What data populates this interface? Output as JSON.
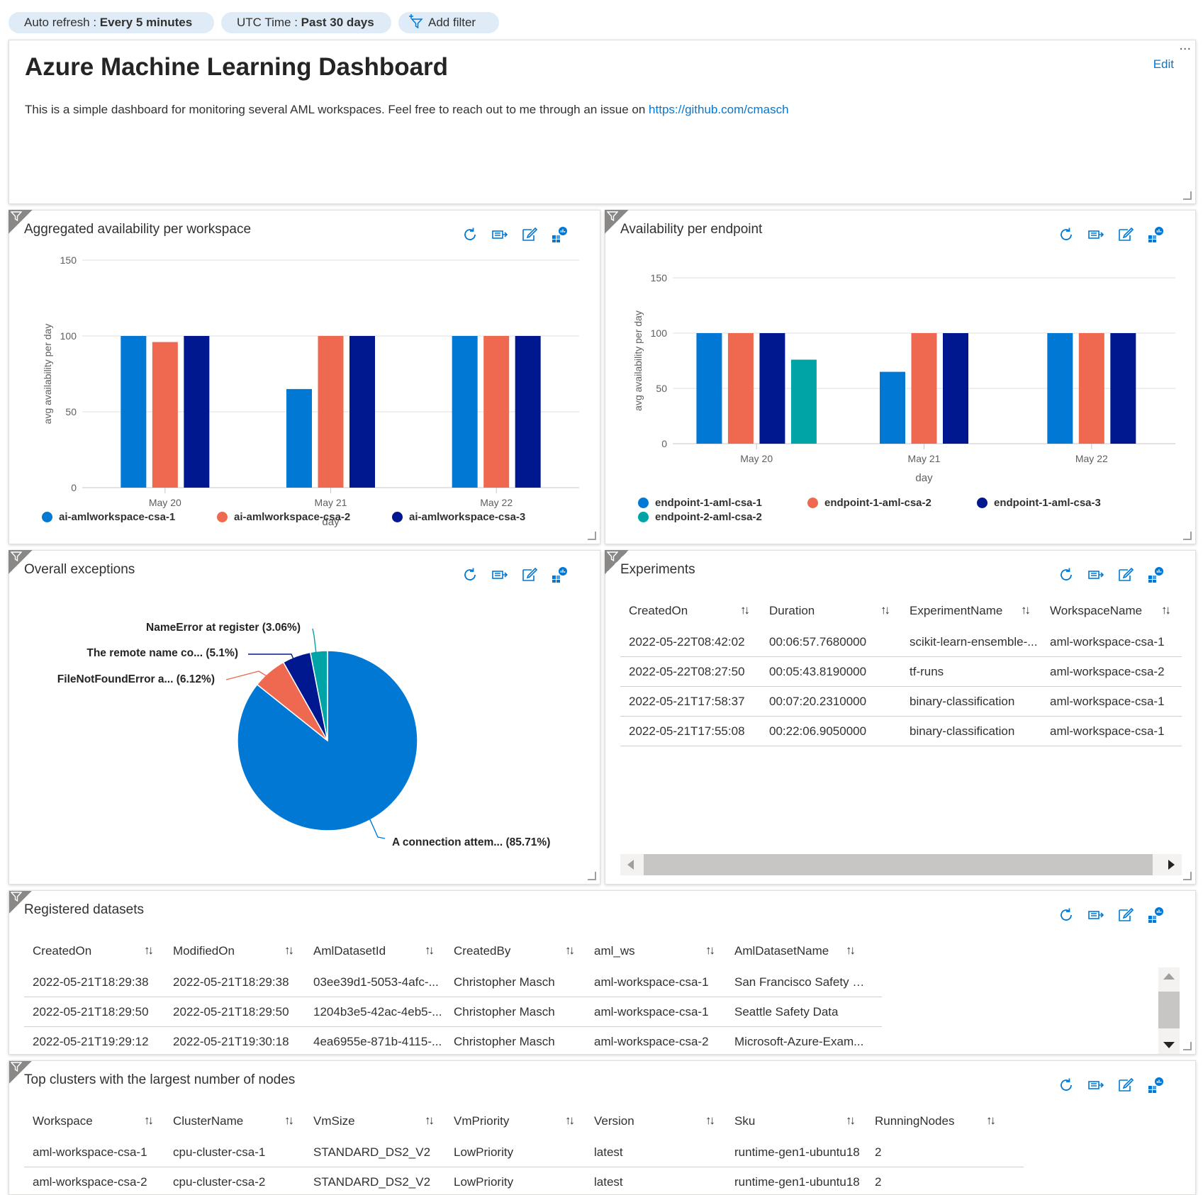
{
  "filters": {
    "auto_refresh_label": "Auto refresh",
    "auto_refresh_value": "Every 5 minutes",
    "time_label": "UTC Time",
    "time_value": "Past 30 days",
    "add_filter": "Add filter"
  },
  "header": {
    "title": "Azure Machine Learning Dashboard",
    "description": "This is a simple dashboard for monitoring several AML workspaces. Feel free to reach out to me through an issue on ",
    "link": "https://github.com/cmasch",
    "edit": "Edit",
    "more": "..."
  },
  "colors": {
    "series1": "#0078d4",
    "series2": "#ef6950",
    "series3": "#00188f",
    "series4": "#00a4a7"
  },
  "icons": [
    "refresh-icon",
    "open-in-logs-icon",
    "edit-icon",
    "pin-icon"
  ],
  "availability_ws": {
    "title": "Aggregated availability per workspace",
    "chart_data": {
      "type": "bar",
      "categories": [
        "May 20",
        "May 21",
        "May 22"
      ],
      "series": [
        {
          "name": "ai-amlworkspace-csa-1",
          "values": [
            100,
            65,
            100
          ]
        },
        {
          "name": "ai-amlworkspace-csa-2",
          "values": [
            96,
            100,
            100
          ]
        },
        {
          "name": "ai-amlworkspace-csa-3",
          "values": [
            100,
            100,
            100
          ]
        }
      ],
      "xlabel": "day",
      "ylabel": "avg availability per day",
      "ylim": [
        0,
        150
      ],
      "yticks": [
        "0",
        "50",
        "100",
        "150"
      ],
      "grid": true,
      "legend": "bottom"
    }
  },
  "availability_ep": {
    "title": "Availability per endpoint",
    "chart_data": {
      "type": "bar",
      "categories": [
        "May 20",
        "May 21",
        "May 22"
      ],
      "series": [
        {
          "name": "endpoint-1-aml-csa-1",
          "values": [
            100,
            65,
            100
          ]
        },
        {
          "name": "endpoint-1-aml-csa-2",
          "values": [
            100,
            100,
            100
          ]
        },
        {
          "name": "endpoint-1-aml-csa-3",
          "values": [
            100,
            100,
            100
          ]
        },
        {
          "name": "endpoint-2-aml-csa-2",
          "values": [
            76,
            null,
            null
          ]
        }
      ],
      "xlabel": "day",
      "ylabel": "avg availability per day",
      "ylim": [
        0,
        150
      ],
      "yticks": [
        "0",
        "50",
        "100",
        "150"
      ],
      "grid": true,
      "legend": "bottom"
    }
  },
  "exceptions": {
    "title": "Overall exceptions",
    "chart_data": {
      "type": "pie",
      "slices": [
        {
          "label": "A connection attem... (85.71%)",
          "value": 85.71
        },
        {
          "label": "FileNotFoundError a... (6.12%)",
          "value": 6.12
        },
        {
          "label": "The remote name co... (5.1%)",
          "value": 5.1
        },
        {
          "label": "NameError at register (3.06%)",
          "value": 3.06
        }
      ]
    }
  },
  "experiments": {
    "title": "Experiments",
    "columns": [
      "CreatedOn",
      "Duration",
      "ExperimentName",
      "WorkspaceName"
    ],
    "rows": [
      [
        "2022-05-22T08:42:02",
        "00:06:57.7680000",
        "scikit-learn-ensemble-...",
        "aml-workspace-csa-1"
      ],
      [
        "2022-05-22T08:27:50",
        "00:05:43.8190000",
        "tf-runs",
        "aml-workspace-csa-2"
      ],
      [
        "2022-05-21T17:58:37",
        "00:07:20.2310000",
        "binary-classification",
        "aml-workspace-csa-1"
      ],
      [
        "2022-05-21T17:55:08",
        "00:22:06.9050000",
        "binary-classification",
        "aml-workspace-csa-1"
      ]
    ]
  },
  "datasets": {
    "title": "Registered datasets",
    "columns": [
      "CreatedOn",
      "ModifiedOn",
      "AmlDatasetId",
      "CreatedBy",
      "aml_ws",
      "AmlDatasetName"
    ],
    "rows": [
      [
        "2022-05-21T18:29:38",
        "2022-05-21T18:29:38",
        "03ee39d1-5053-4afc-...",
        "Christopher Masch",
        "aml-workspace-csa-1",
        "San Francisco Safety D..."
      ],
      [
        "2022-05-21T18:29:50",
        "2022-05-21T18:29:50",
        "1204b3e5-42ac-4eb5-...",
        "Christopher Masch",
        "aml-workspace-csa-1",
        "Seattle Safety Data"
      ],
      [
        "2022-05-21T19:29:12",
        "2022-05-21T19:30:18",
        "4ea6955e-871b-4115-...",
        "Christopher Masch",
        "aml-workspace-csa-2",
        "Microsoft-Azure-Exam..."
      ]
    ]
  },
  "clusters": {
    "title": "Top clusters with the largest number of nodes",
    "columns": [
      "Workspace",
      "ClusterName",
      "VmSize",
      "VmPriority",
      "Version",
      "Sku",
      "RunningNodes"
    ],
    "rows": [
      [
        "aml-workspace-csa-1",
        "cpu-cluster-csa-1",
        "STANDARD_DS2_V2",
        "LowPriority",
        "latest",
        "runtime-gen1-ubuntu18",
        "2"
      ],
      [
        "aml-workspace-csa-2",
        "cpu-cluster-csa-2",
        "STANDARD_DS2_V2",
        "LowPriority",
        "latest",
        "runtime-gen1-ubuntu18",
        "2"
      ]
    ]
  }
}
